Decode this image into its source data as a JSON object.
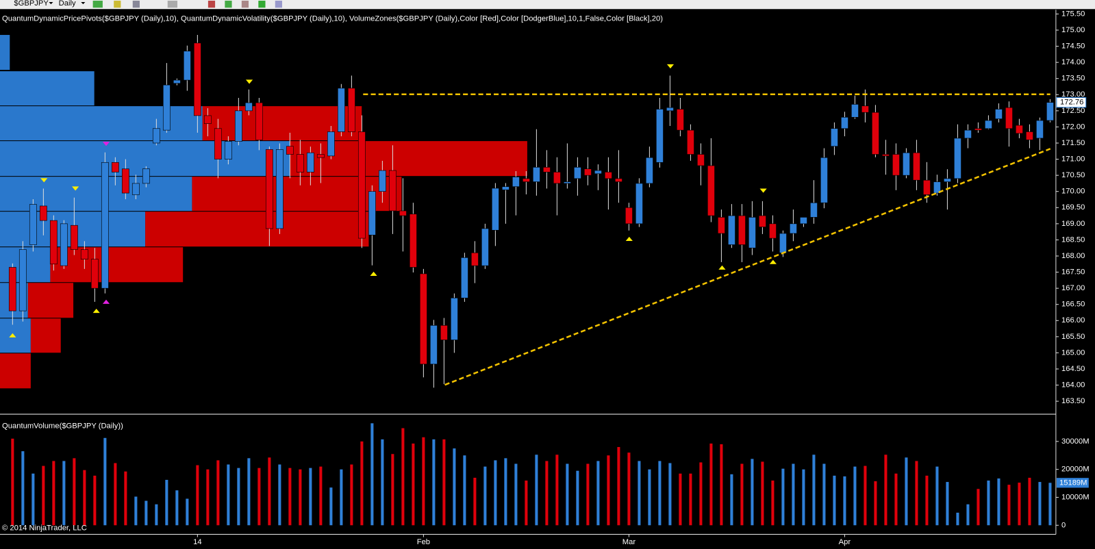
{
  "toolbar": {
    "symbol": "$GBPJPY",
    "interval": "Daily"
  },
  "chart_data": [
    {
      "type": "candlestick",
      "title": "QuantumDynamicPricePivots($GBPJPY (Daily),10), QuantumDynamicVolatility($GBPJPY (Daily),10), VolumeZones($GBPJPY (Daily),Color [Red],Color [DodgerBlue],10,1,False,Color [Black],20)",
      "up_color": "#2f80d8",
      "down_color": "#e0000b",
      "open": [
        167.65,
        166.3,
        168.35,
        169.55,
        169.1,
        167.7,
        168.95,
        168.2,
        167.9,
        167.0,
        170.9,
        170.7,
        169.9,
        170.25,
        171.5,
        171.9,
        173.35,
        173.45,
        174.6,
        172.35,
        171.95,
        171.0,
        171.55,
        172.5,
        172.75,
        171.3,
        168.85,
        171.4,
        171.15,
        170.6,
        171.15,
        171.1,
        171.85,
        173.2,
        171.85,
        168.65,
        170.0,
        170.65,
        169.4,
        169.3,
        167.45,
        164.65,
        165.85,
        165.4,
        166.7,
        168.1,
        167.7,
        168.8,
        170.05,
        170.15,
        170.4,
        170.3,
        170.75,
        170.6,
        170.25,
        170.4,
        170.7,
        170.55,
        170.6,
        170.4,
        169.5,
        169.0,
        170.25,
        170.9,
        172.5,
        172.55,
        171.9,
        171.15,
        170.8,
        169.2,
        168.35,
        169.25,
        168.25,
        169.25,
        169.0,
        168.1,
        168.7,
        169.0,
        169.2,
        169.65,
        171.4,
        171.95,
        172.3,
        172.65,
        172.45,
        171.15,
        171.15,
        170.5,
        171.2,
        170.35,
        169.95,
        170.3,
        170.4,
        171.65,
        171.95,
        171.95,
        172.25,
        172.6,
        172.05,
        171.85,
        171.65,
        172.2
      ],
      "high": [
        167.77,
        168.46,
        169.76,
        170.09,
        169.26,
        169.11,
        169.81,
        168.46,
        168.25,
        171.21,
        171.06,
        171.0,
        170.52,
        170.78,
        172.25,
        173.98,
        173.5,
        174.52,
        174.85,
        172.58,
        172.25,
        171.71,
        172.9,
        173.16,
        172.9,
        171.39,
        171.49,
        171.82,
        171.6,
        171.39,
        171.49,
        172.03,
        173.33,
        173.59,
        172.36,
        170.19,
        170.95,
        171.43,
        170.41,
        169.65,
        167.6,
        166.02,
        166.08,
        166.84,
        168.1,
        168.46,
        169.0,
        170.26,
        170.26,
        170.63,
        170.63,
        171.93,
        171.28,
        171.06,
        171.49,
        171.06,
        171.06,
        170.84,
        171.06,
        171.28,
        169.65,
        170.41,
        171.39,
        172.9,
        173.59,
        172.9,
        172.08,
        171.49,
        171.65,
        169.44,
        169.61,
        169.61,
        169.7,
        169.7,
        169.26,
        168.79,
        169.44,
        169.18,
        170.35,
        171.34,
        172.14,
        172.47,
        172.97,
        173.16,
        172.68,
        171.6,
        171.49,
        171.34,
        171.6,
        170.91,
        170.52,
        170.69,
        172.08,
        172.08,
        172.14,
        172.36,
        172.73,
        172.79,
        172.25,
        172.08,
        172.29,
        172.86
      ],
      "low": [
        165.87,
        165.97,
        168.14,
        168.64,
        167.55,
        167.6,
        168.03,
        167.6,
        166.58,
        166.84,
        170.19,
        169.76,
        169.76,
        170.13,
        171.43,
        171.82,
        173.29,
        173.12,
        171.82,
        171.71,
        170.41,
        170.84,
        171.43,
        172.36,
        171.28,
        168.31,
        168.68,
        170.41,
        170.19,
        170.19,
        170.26,
        171.0,
        171.71,
        171.71,
        168.25,
        167.71,
        169.65,
        168.68,
        168.14,
        167.49,
        164.24,
        163.92,
        164.03,
        165.0,
        166.58,
        167.16,
        167.6,
        168.31,
        169.0,
        169.26,
        169.91,
        169.87,
        170.09,
        169.26,
        170.09,
        169.87,
        170.19,
        170.04,
        169.44,
        169.65,
        168.79,
        168.9,
        170.13,
        170.74,
        172.03,
        171.71,
        170.95,
        170.19,
        169.05,
        167.81,
        168.25,
        167.81,
        168.03,
        168.68,
        168.14,
        167.97,
        168.46,
        168.9,
        169.0,
        169.48,
        171.13,
        171.71,
        172.25,
        172.14,
        171.06,
        170.52,
        170.04,
        170.41,
        170.04,
        169.65,
        169.87,
        169.44,
        170.26,
        171.34,
        171.82,
        171.93,
        172.14,
        171.39,
        171.65,
        171.34,
        171.28,
        172.14
      ],
      "close": [
        166.3,
        168.2,
        169.6,
        169.1,
        167.75,
        169.0,
        168.2,
        167.9,
        167.0,
        170.9,
        170.6,
        169.95,
        170.25,
        170.7,
        171.95,
        173.3,
        173.45,
        174.35,
        172.35,
        172.1,
        171.0,
        171.55,
        172.5,
        172.75,
        171.6,
        168.85,
        171.3,
        171.15,
        170.6,
        171.2,
        171.05,
        171.85,
        173.2,
        171.85,
        168.55,
        170.0,
        170.65,
        169.4,
        169.25,
        167.65,
        164.65,
        165.85,
        165.4,
        166.7,
        167.95,
        167.7,
        168.85,
        170.1,
        170.15,
        170.45,
        170.3,
        170.75,
        170.6,
        170.25,
        170.3,
        170.75,
        170.5,
        170.65,
        170.4,
        170.3,
        169.0,
        170.25,
        171.05,
        172.55,
        172.6,
        171.9,
        171.15,
        170.8,
        169.25,
        168.7,
        169.25,
        168.35,
        169.2,
        168.9,
        168.55,
        168.7,
        169.0,
        169.2,
        169.65,
        171.05,
        171.95,
        172.3,
        172.7,
        172.45,
        171.15,
        171.1,
        170.5,
        171.2,
        170.35,
        169.9,
        170.3,
        170.4,
        171.65,
        171.9,
        171.9,
        172.2,
        172.55,
        171.95,
        171.8,
        171.6,
        172.2,
        172.76
      ],
      "last_value": 172.76,
      "ylim": [
        163.12,
        175.63
      ],
      "yticks": [
        {
          "value": 163.5,
          "label": "163.50"
        },
        {
          "value": 164,
          "label": "164.00"
        },
        {
          "value": 164.5,
          "label": "164.50"
        },
        {
          "value": 165,
          "label": "165.00"
        },
        {
          "value": 165.5,
          "label": "165.50"
        },
        {
          "value": 166,
          "label": "166.00"
        },
        {
          "value": 166.5,
          "label": "166.50"
        },
        {
          "value": 167,
          "label": "167.00"
        },
        {
          "value": 167.5,
          "label": "167.50"
        },
        {
          "value": 168,
          "label": "168.00"
        },
        {
          "value": 168.5,
          "label": "168.50"
        },
        {
          "value": 169,
          "label": "169.00"
        },
        {
          "value": 169.5,
          "label": "169.50"
        },
        {
          "value": 170,
          "label": "170.00"
        },
        {
          "value": 170.5,
          "label": "170.50"
        },
        {
          "value": 171,
          "label": "171.00"
        },
        {
          "value": 171.5,
          "label": "171.50"
        },
        {
          "value": 172,
          "label": "172.00"
        },
        {
          "value": 172.5,
          "label": "172.50"
        },
        {
          "value": 173,
          "label": "173.00"
        },
        {
          "value": 173.5,
          "label": "173.50"
        },
        {
          "value": 174,
          "label": "174.00"
        },
        {
          "value": 174.5,
          "label": "174.50"
        },
        {
          "value": 175,
          "label": "175.00"
        },
        {
          "value": 175.5,
          "label": "175.50"
        }
      ]
    },
    {
      "type": "bar",
      "title": "QuantumVolume($GBPJPY (Daily))",
      "categories": [
        null,
        null,
        null,
        null,
        null,
        null,
        null,
        null,
        null,
        null,
        null,
        null,
        null,
        null,
        null,
        null,
        null,
        null,
        "14",
        null,
        null,
        null,
        null,
        null,
        null,
        null,
        null,
        null,
        null,
        null,
        null,
        null,
        null,
        null,
        null,
        null,
        null,
        null,
        null,
        null,
        "Feb",
        null,
        null,
        null,
        null,
        null,
        null,
        null,
        null,
        null,
        null,
        null,
        null,
        null,
        null,
        null,
        null,
        null,
        null,
        null,
        "Mar",
        null,
        null,
        null,
        null,
        null,
        null,
        null,
        null,
        null,
        null,
        null,
        null,
        null,
        null,
        null,
        null,
        null,
        null,
        null,
        null,
        "Apr",
        null,
        null,
        null,
        null,
        null,
        null,
        null,
        null,
        null,
        null,
        null,
        null,
        null,
        null,
        null,
        null,
        null,
        null,
        null,
        null
      ],
      "values": [
        31000,
        26500,
        18500,
        21250,
        23000,
        23000,
        24000,
        19750,
        17750,
        31250,
        22250,
        19250,
        10250,
        8750,
        7500,
        16250,
        12500,
        9500,
        21500,
        20000,
        23250,
        21750,
        20500,
        24000,
        20500,
        24250,
        21750,
        20500,
        20000,
        20500,
        21000,
        13500,
        20000,
        21750,
        30000,
        36500,
        30750,
        25500,
        34750,
        29250,
        31500,
        30750,
        30750,
        27500,
        25000,
        17000,
        21000,
        23250,
        24000,
        22000,
        16000,
        25250,
        23000,
        25250,
        22000,
        19500,
        22000,
        23000,
        25000,
        28000,
        26000,
        23000,
        20000,
        23000,
        22250,
        18500,
        18500,
        22500,
        29250,
        29000,
        18250,
        22000,
        23750,
        22750,
        16000,
        20250,
        22000,
        20000,
        25250,
        22000,
        17750,
        17500,
        21000,
        21250,
        15750,
        25250,
        18500,
        24250,
        23000,
        17750,
        21000,
        15500,
        4500,
        7500,
        13000,
        16000,
        16750,
        14500,
        15250,
        17000,
        15500,
        15189
      ],
      "last_value": {
        "value": 15189,
        "label": "15189M"
      },
      "ylim": [
        -3250,
        38000
      ],
      "yticks": [
        0,
        {
          "value": 10000,
          "label": "10000M"
        },
        {
          "value": 20000,
          "label": "20000M"
        },
        {
          "value": 30000,
          "label": "30000M"
        }
      ],
      "copyright": "© 2014 NinjaTrader, LLC"
    }
  ]
}
